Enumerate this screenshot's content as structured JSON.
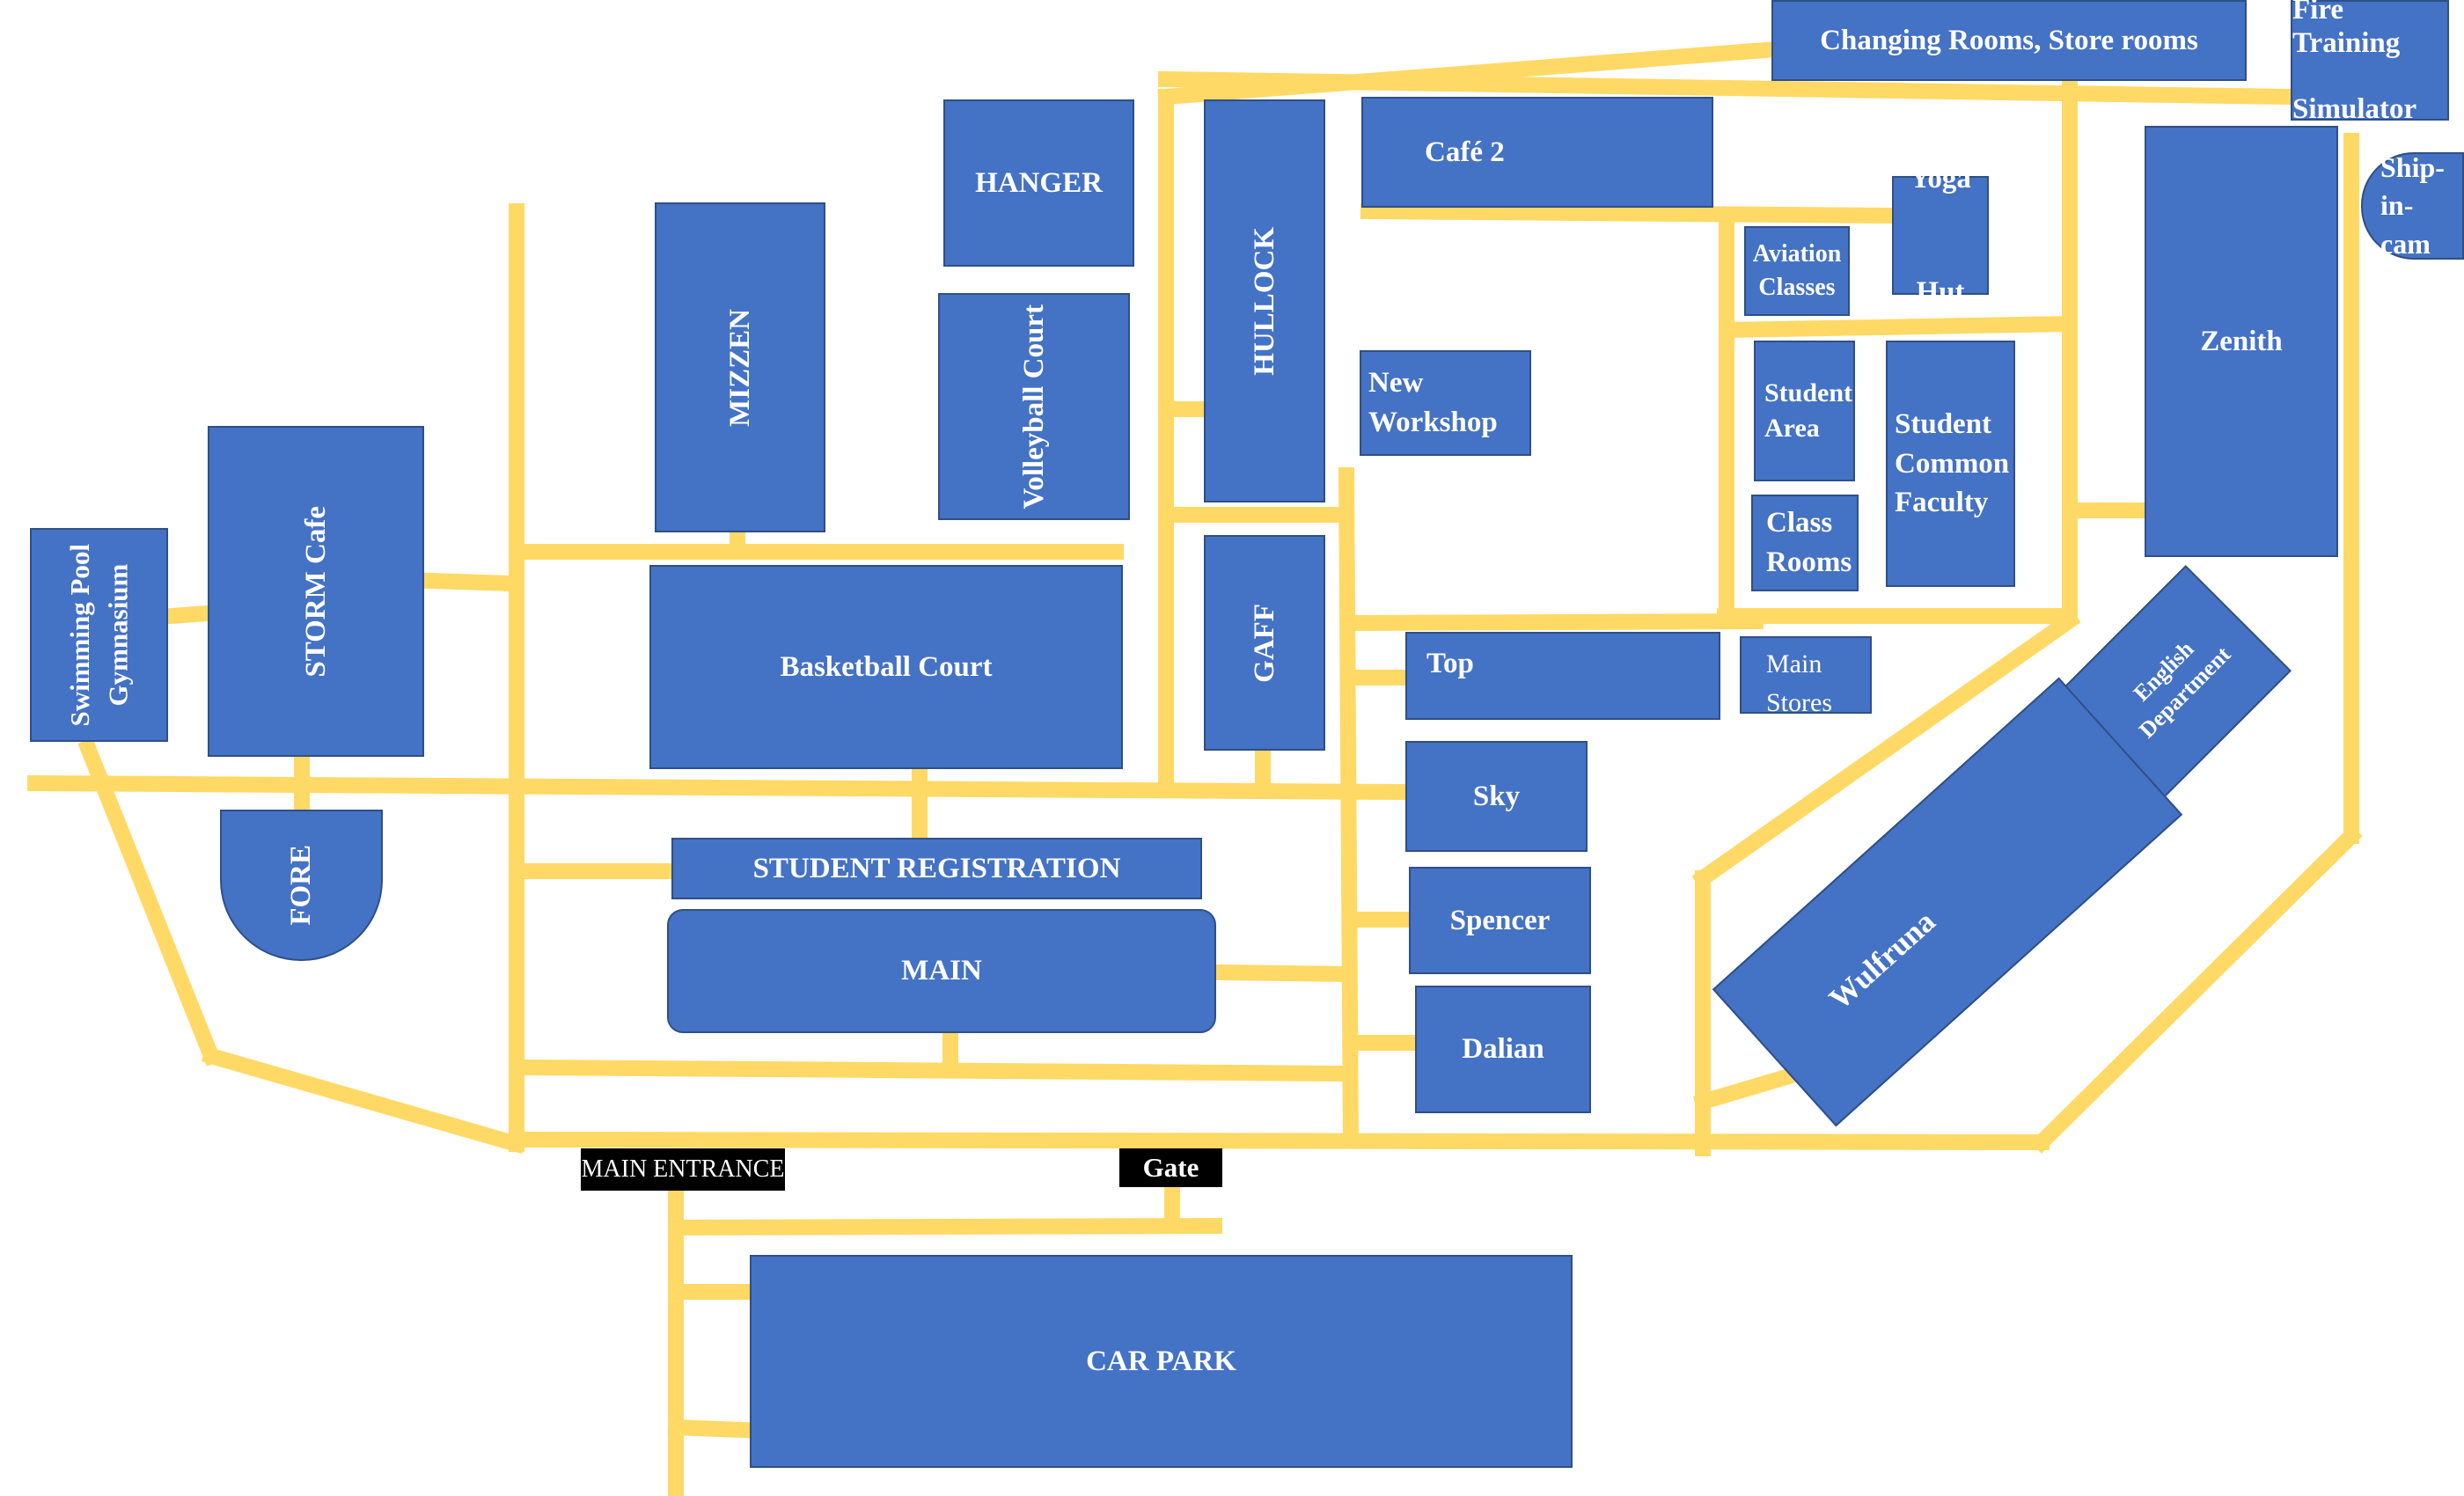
{
  "colors": {
    "building": "#4472C4",
    "road": "#FFD966",
    "label_bg": "#000000",
    "text": "#FFFFFF"
  },
  "buildings": {
    "changing_rooms": "Changing Rooms, Store rooms",
    "fire_training": "Fire Training\n\nSimulator",
    "ship_in_cam": "Ship-\nin-\ncam",
    "hanger": "HANGER",
    "cafe2": "Café 2",
    "yoga_hut": "Yoga\n\nHut",
    "aviation_classes": "Aviation\nClasses",
    "zenith": "Zenith",
    "mizzen": "MIZZEN",
    "volleyball_court": "Volleyball Court",
    "hullock": "HULLOCK",
    "new_workshop": "New\nWorkshop",
    "student_area": "Student\nArea",
    "student_common_faculty": "Student\nCommon\nFaculty",
    "class_rooms": "Class\nRooms",
    "storm_cafe": "STORM Cafe",
    "swimming_pool": "Swimming Pool\nGymnasium",
    "basketball_court": "Basketball Court",
    "gaff": "GAFF",
    "top": "Top",
    "main_stores": "Main\nStores",
    "english_department": "English\nDepartment",
    "sky": "Sky",
    "fore": "FORE",
    "student_registration": "STUDENT REGISTRATION",
    "spencer": "Spencer",
    "wulfruna": "Wulfruna",
    "main": "MAIN",
    "dalian": "Dalian",
    "car_park": "CAR PARK"
  },
  "labels": {
    "main_entrance": "MAIN ENTRANCE",
    "gate": "Gate"
  }
}
